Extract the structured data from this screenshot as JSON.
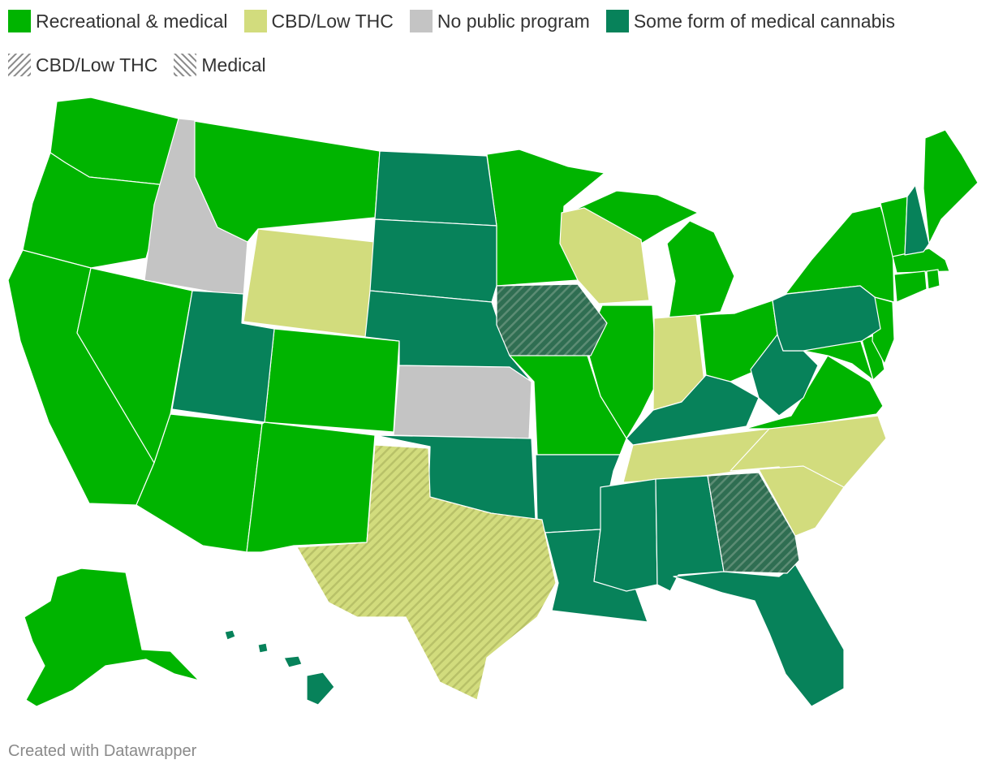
{
  "legend": {
    "items": [
      {
        "label": "Recreational & medical",
        "color": "#00b400"
      },
      {
        "label": "CBD/Low THC",
        "color": "#d2dc7d"
      },
      {
        "label": "No public program",
        "color": "#c4c4c4"
      },
      {
        "label": "Some form of medical cannabis",
        "color": "#07825a"
      }
    ],
    "hatch_items": [
      {
        "label": "CBD/Low THC",
        "icon": "hatch-pattern-icon"
      },
      {
        "label": "Medical",
        "icon": "hatch-pattern-icon"
      }
    ]
  },
  "colors": {
    "recreational": "#00b400",
    "cbd": "#d2dc7d",
    "none": "#c4c4c4",
    "medical": "#07825a",
    "stroke": "#ffffff"
  },
  "credit": "Created with Datawrapper"
}
